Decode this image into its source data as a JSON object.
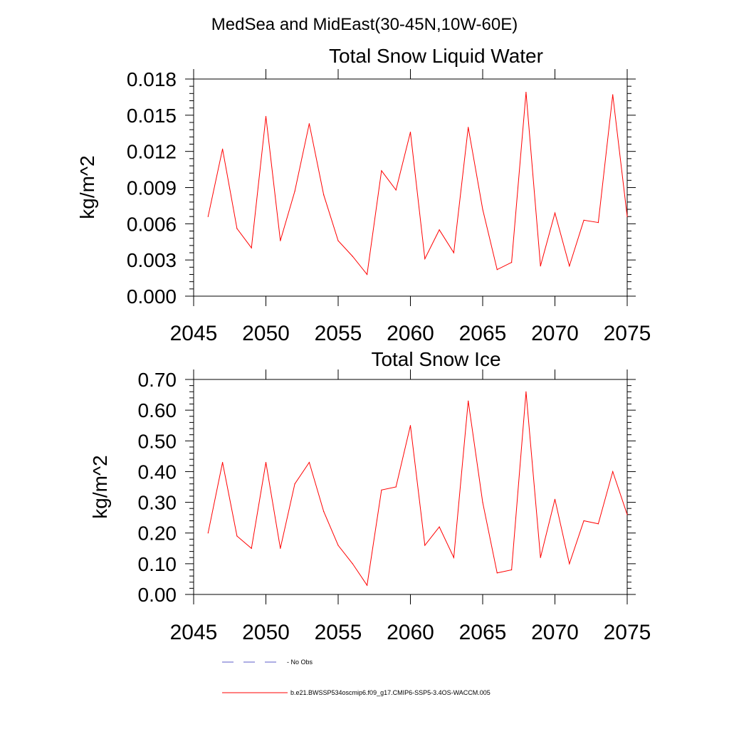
{
  "page": {
    "title": "MedSea and MidEast(30-45N,10W-60E)"
  },
  "colors": {
    "series": "#ff0000",
    "obs": "#5b5bc8",
    "axis": "#000000"
  },
  "chart_data": [
    {
      "type": "line",
      "title": "Total Snow Liquid Water",
      "xlabel": "",
      "ylabel": "kg/m^2",
      "xlim": [
        2045,
        2075
      ],
      "ylim": [
        0.0,
        0.018
      ],
      "yticks": [
        "0.000",
        "0.003",
        "0.006",
        "0.009",
        "0.012",
        "0.015",
        "0.018"
      ],
      "xticks": [
        "2045",
        "2050",
        "2055",
        "2060",
        "2065",
        "2070",
        "2075"
      ],
      "series": [
        {
          "name": "b.e21.BWSSP534oscmip6.f09_g17.CMIP6-SSP5-3.4OS-WACCM.005",
          "x": [
            2046,
            2047,
            2048,
            2049,
            2050,
            2051,
            2052,
            2053,
            2054,
            2055,
            2056,
            2057,
            2058,
            2059,
            2060,
            2061,
            2062,
            2063,
            2064,
            2065,
            2066,
            2067,
            2068,
            2069,
            2070,
            2071,
            2072,
            2073,
            2074,
            2075
          ],
          "values": [
            0.0066,
            0.0122,
            0.0056,
            0.004,
            0.0149,
            0.0046,
            0.0087,
            0.0143,
            0.0084,
            0.0046,
            0.0033,
            0.0018,
            0.0104,
            0.0088,
            0.0136,
            0.0031,
            0.0055,
            0.0036,
            0.014,
            0.0072,
            0.0022,
            0.0028,
            0.0169,
            0.0025,
            0.0069,
            0.0025,
            0.0063,
            0.0061,
            0.0167,
            0.0066
          ]
        }
      ]
    },
    {
      "type": "line",
      "title": "Total Snow Ice",
      "xlabel": "",
      "ylabel": "kg/m^2",
      "xlim": [
        2045,
        2075
      ],
      "ylim": [
        0.0,
        0.7
      ],
      "yticks": [
        "0.00",
        "0.10",
        "0.20",
        "0.30",
        "0.40",
        "0.50",
        "0.60",
        "0.70"
      ],
      "xticks": [
        "2045",
        "2050",
        "2055",
        "2060",
        "2065",
        "2070",
        "2075"
      ],
      "series": [
        {
          "name": "b.e21.BWSSP534oscmip6.f09_g17.CMIP6-SSP5-3.4OS-WACCM.005",
          "x": [
            2046,
            2047,
            2048,
            2049,
            2050,
            2051,
            2052,
            2053,
            2054,
            2055,
            2056,
            2057,
            2058,
            2059,
            2060,
            2061,
            2062,
            2063,
            2064,
            2065,
            2066,
            2067,
            2068,
            2069,
            2070,
            2071,
            2072,
            2073,
            2074,
            2075
          ],
          "values": [
            0.2,
            0.43,
            0.19,
            0.15,
            0.43,
            0.15,
            0.36,
            0.43,
            0.27,
            0.16,
            0.1,
            0.03,
            0.34,
            0.35,
            0.55,
            0.16,
            0.22,
            0.12,
            0.63,
            0.3,
            0.07,
            0.08,
            0.66,
            0.12,
            0.31,
            0.1,
            0.24,
            0.23,
            0.4,
            0.26
          ]
        }
      ]
    }
  ],
  "legend": {
    "items": [
      {
        "label": "- No Obs",
        "style": "dashed",
        "color_key": "obs"
      },
      {
        "label": "b.e21.BWSSP534oscmip6.f09_g17.CMIP6-SSP5-3.4OS-WACCM.005",
        "style": "solid",
        "color_key": "series"
      }
    ]
  }
}
